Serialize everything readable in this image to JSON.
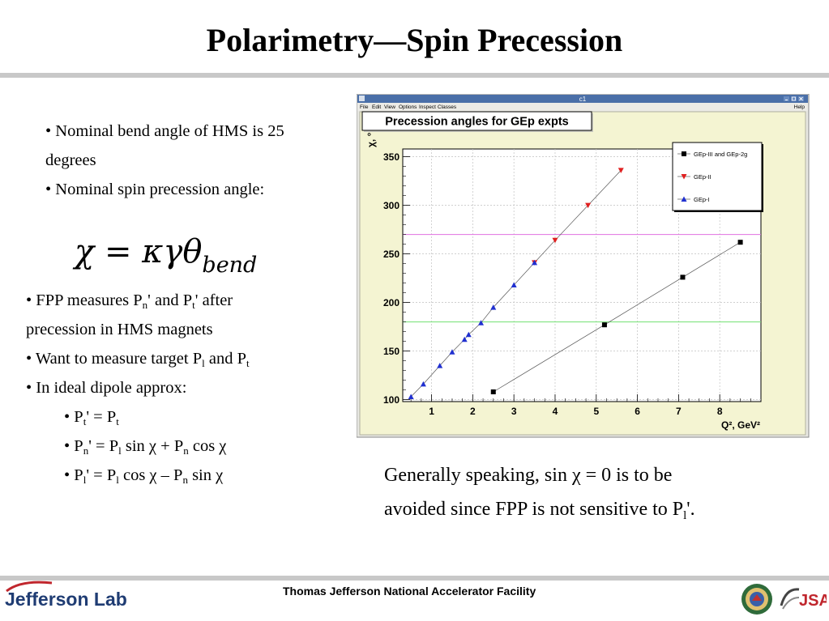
{
  "slide": {
    "title": "Polarimetry—Spin Precession",
    "bullets1": [
      "• Nominal bend angle of HMS is 25",
      "degrees",
      "• Nominal spin precession angle:"
    ],
    "formula": {
      "main": "χ = κγθ",
      "sub": "bend"
    },
    "bullets2": {
      "fpp_pre": "• FPP measures P",
      "fpp_s1": "n",
      "fpp_mid": "' and P",
      "fpp_s2": "t",
      "fpp_post": "' after",
      "fpp_line2": "precession in HMS magnets",
      "want_pre": "• Want to measure target P",
      "want_s1": "l",
      "want_mid": " and P",
      "want_s2": "t",
      "ideal": "• In ideal dipole approx:"
    },
    "equations": {
      "e1_a": "• P",
      "e1_s1": "t",
      "e1_b": "' = P",
      "e1_s2": "t",
      "e2_a": "• P",
      "e2_s1": "n",
      "e2_b": "' = P",
      "e2_s2": "l",
      "e2_c": " sin χ + P",
      "e2_s3": "n",
      "e2_d": " cos χ",
      "e3_a": "• P",
      "e3_s1": "l",
      "e3_b": "' = P",
      "e3_s2": "l",
      "e3_c": " cos χ – P",
      "e3_s3": "n",
      "e3_d": " sin χ"
    },
    "note": {
      "line1": "Generally speaking, sin χ = 0 is to be",
      "line2_pre": "avoided since FPP is not sensitive to P",
      "line2_sub": "l",
      "line2_post": "'."
    }
  },
  "footer": {
    "facility": "Thomas Jefferson National Accelerator Facility",
    "logo": "Jefferson Lab",
    "jsa": "JSA"
  },
  "root_window": {
    "title": "c1",
    "menu": [
      "File",
      "Edit",
      "View",
      "Options",
      "Inspect",
      "Classes"
    ],
    "help": "Help"
  },
  "chart_data": {
    "type": "scatter",
    "title": "Precession angles for GEp expts",
    "ylabel": "χ, °",
    "xlabel": "Q², GeV²",
    "xlim": [
      0.3,
      9.0
    ],
    "ylim": [
      98,
      358
    ],
    "xticks": [
      1,
      2,
      3,
      4,
      5,
      6,
      7,
      8
    ],
    "yticks": [
      100,
      150,
      200,
      250,
      300,
      350
    ],
    "grid": true,
    "legend": "top-right",
    "hlines": [
      {
        "y": 270,
        "color": "#e070e0"
      },
      {
        "y": 180,
        "color": "#70e070"
      }
    ],
    "series": [
      {
        "name": "GEp-III and GEp-2g",
        "color": "#000000",
        "marker": "square",
        "x": [
          2.5,
          5.2,
          7.1,
          8.5
        ],
        "y": [
          108,
          177,
          226,
          262
        ]
      },
      {
        "name": "GEp-II",
        "color": "#e02020",
        "marker": "triangle-down",
        "x": [
          3.5,
          4.0,
          4.8,
          5.6
        ],
        "y": [
          241,
          264,
          300,
          336
        ]
      },
      {
        "name": "GEp-I",
        "color": "#2030d0",
        "marker": "triangle-up",
        "x": [
          0.5,
          0.8,
          1.2,
          1.5,
          1.8,
          1.9,
          2.2,
          2.5,
          3.0,
          3.5
        ],
        "y": [
          103,
          116,
          135,
          149,
          162,
          167,
          179,
          195,
          218,
          241
        ]
      }
    ]
  }
}
